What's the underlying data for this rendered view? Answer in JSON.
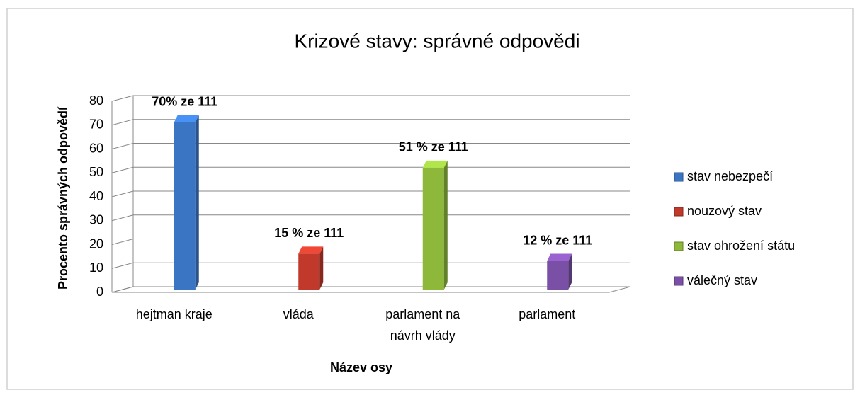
{
  "chart_data": {
    "type": "bar3d",
    "title": "Krizové stavy: správné odpovědi",
    "x_label": "Název osy",
    "y_label": "Procento správných odpovědí",
    "categories": [
      "hejtman kraje",
      "vláda",
      "parlament na návrh vlády",
      "parlament"
    ],
    "series": [
      {
        "name": "stav nebezpečí",
        "color": "#3a75c4",
        "values": [
          70,
          null,
          null,
          null
        ],
        "value_labels": [
          "70% ze 111",
          null,
          null,
          null
        ]
      },
      {
        "name": "nouzový stav",
        "color": "#c0392b",
        "values": [
          null,
          15,
          null,
          null
        ],
        "value_labels": [
          null,
          "15 % ze 111",
          null,
          null
        ]
      },
      {
        "name": "stav ohrožení státu",
        "color": "#8db83a",
        "values": [
          null,
          null,
          51,
          null
        ],
        "value_labels": [
          null,
          null,
          "51 % ze 111",
          null
        ]
      },
      {
        "name": "válečný stav",
        "color": "#7a4fa6",
        "values": [
          null,
          null,
          null,
          12
        ],
        "value_labels": [
          null,
          null,
          null,
          "12 % ze 111"
        ]
      }
    ],
    "ylim": [
      0,
      80
    ],
    "yticks": [
      0,
      10,
      20,
      30,
      40,
      50,
      60,
      70,
      80
    ],
    "grid": true
  }
}
